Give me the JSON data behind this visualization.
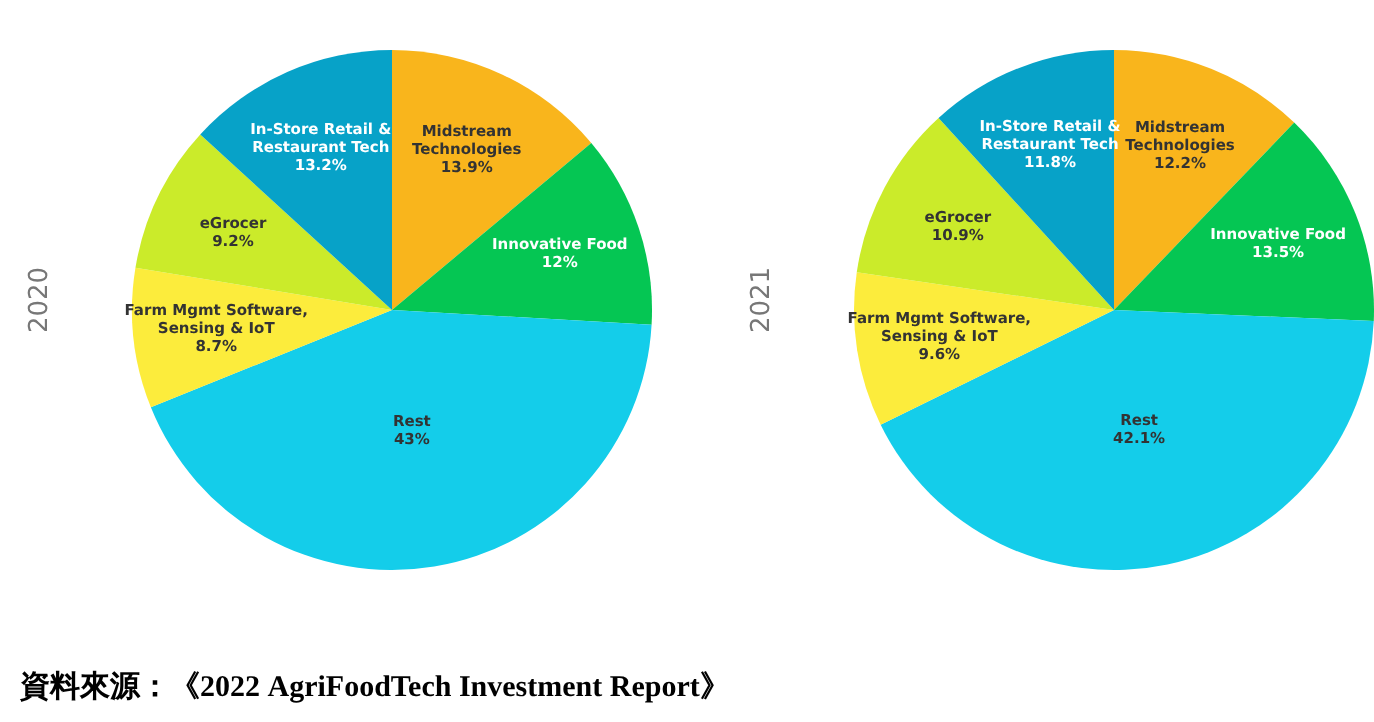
{
  "chart_data": [
    {
      "type": "pie",
      "ylabel": "2020",
      "categories": [
        "Midstream Technologies",
        "Innovative Food",
        "Rest",
        "Farm Mgmt Software, Sensing & IoT",
        "eGrocer",
        "In-Store Retail & Restaurant Tech"
      ],
      "values": [
        13.9,
        12,
        43,
        8.7,
        9.2,
        13.2
      ],
      "value_labels": [
        "13.9%",
        "12%",
        "43%",
        "8.7%",
        "9.2%",
        "13.2%"
      ],
      "colors": [
        "#f9b51c",
        "#05c653",
        "#14cdea",
        "#fcec3c",
        "#cbeb2a",
        "#07a2c8"
      ],
      "legend": false,
      "annotations": [
        "資料來源：《2022 AgriFoodTech Investment Report》"
      ]
    },
    {
      "type": "pie",
      "ylabel": "2021",
      "categories": [
        "Midstream Technologies",
        "Innovative Food",
        "Rest",
        "Farm Mgmt Software, Sensing & IoT",
        "eGrocer",
        "In-Store Retail & Restaurant Tech"
      ],
      "values": [
        12.2,
        13.5,
        42.1,
        9.6,
        10.9,
        11.8
      ],
      "value_labels": [
        "12.2%",
        "13.5%",
        "42.1%",
        "9.6%",
        "10.9%",
        "11.8%"
      ],
      "colors": [
        "#f9b51c",
        "#05c653",
        "#14cdea",
        "#fcec3c",
        "#cbeb2a",
        "#07a2c8"
      ],
      "legend": false
    }
  ]
}
